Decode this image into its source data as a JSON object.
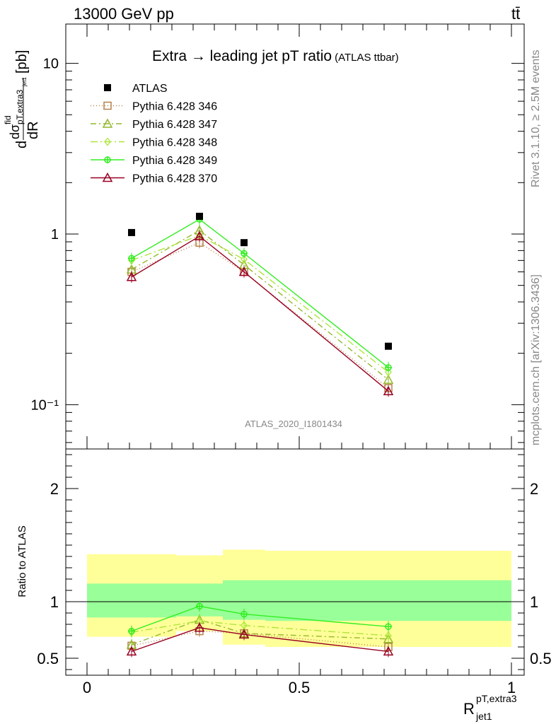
{
  "header": {
    "energy": "13000 GeV pp",
    "process": "tt̄"
  },
  "side_text": {
    "rivet": "Rivet 3.1.10, ≥ 2.5M events",
    "source": "mcplots.cern.ch [arXiv:1306.3436]"
  },
  "analysis_id": "ATLAS_2020_I1801434",
  "chart_data": [
    {
      "type": "line",
      "panel": "main",
      "title": "Extra → leading jet p_T ratio",
      "title_suffix": "(ATLAS ttbar)",
      "ylabel_parts": {
        "d1": "d",
        "sigma": "dσ",
        "sup": "fid",
        "sub": "pT,extra3",
        "subsub": "jet1",
        "dR": "dR",
        "unit": "[pb]"
      },
      "yscale": "log",
      "ylim": [
        0.055,
        17
      ],
      "xlim": [
        -0.05,
        1.03
      ],
      "ytick_labels": [
        "10",
        "1",
        "10⁻¹"
      ],
      "ytick_values": [
        10,
        1,
        0.1
      ],
      "legend_position": "top-left",
      "x": [
        0.105,
        0.265,
        0.37,
        0.71
      ],
      "data": {
        "name": "ATLAS",
        "color": "#000000",
        "values": [
          1.02,
          1.27,
          0.89,
          0.22
        ]
      },
      "series": [
        {
          "name": "Pythia 6.428 346",
          "color": "#b5814c",
          "dash": "1,3",
          "marker": "square",
          "values": [
            0.6,
            0.89,
            0.6,
            0.125
          ]
        },
        {
          "name": "Pythia 6.428 347",
          "color": "#94b82d",
          "dash": "8,4,2,4",
          "marker": "triangle",
          "values": [
            0.62,
            1.05,
            0.66,
            0.14
          ]
        },
        {
          "name": "Pythia 6.428 348",
          "color": "#aee63c",
          "dash": "10,4,2,4",
          "marker": "diamond",
          "values": [
            0.7,
            0.98,
            0.71,
            0.155
          ]
        },
        {
          "name": "Pythia 6.428 349",
          "color": "#33ee22",
          "dash": "",
          "marker": "cross",
          "values": [
            0.72,
            1.22,
            0.77,
            0.165
          ]
        },
        {
          "name": "Pythia 6.428 370",
          "color": "#990022",
          "dash": "",
          "marker": "triangle-open",
          "values": [
            0.56,
            0.97,
            0.6,
            0.12
          ]
        }
      ]
    },
    {
      "type": "line",
      "panel": "ratio",
      "ylabel": "Ratio to ATLAS",
      "xlabel_main": "R",
      "xlabel_sup": "pT,extra3",
      "xlabel_sub": "jet1",
      "ylim": [
        0.35,
        2.35
      ],
      "xlim": [
        -0.05,
        1.03
      ],
      "ytick_labels": [
        "0.5",
        "1",
        "2"
      ],
      "ytick_values": [
        0.5,
        1,
        2
      ],
      "xtick_labels": [
        "0",
        "0.5",
        "1"
      ],
      "xtick_values": [
        0,
        0.5,
        1
      ],
      "bands": [
        {
          "x0": 0.0,
          "x1": 0.21,
          "yellow": [
            0.69,
            1.42
          ],
          "green": [
            0.86,
            1.16
          ]
        },
        {
          "x0": 0.21,
          "x1": 0.32,
          "yellow": [
            0.74,
            1.41
          ],
          "green": [
            0.87,
            1.16
          ]
        },
        {
          "x0": 0.32,
          "x1": 0.42,
          "yellow": [
            0.62,
            1.46
          ],
          "green": [
            0.84,
            1.19
          ]
        },
        {
          "x0": 0.42,
          "x1": 1.0,
          "yellow": [
            0.6,
            1.45
          ],
          "green": [
            0.83,
            1.19
          ]
        }
      ],
      "x": [
        0.105,
        0.265,
        0.37,
        0.71
      ],
      "series": [
        {
          "name": "Pythia 6.428 346",
          "color": "#b5814c",
          "dash": "1,3",
          "marker": "square",
          "values": [
            0.61,
            0.74,
            0.72,
            0.6
          ]
        },
        {
          "name": "Pythia 6.428 347",
          "color": "#94b82d",
          "dash": "8,4,2,4",
          "marker": "triangle",
          "values": [
            0.62,
            0.84,
            0.72,
            0.67
          ]
        },
        {
          "name": "Pythia 6.428 348",
          "color": "#aee63c",
          "dash": "10,4,2,4",
          "marker": "diamond",
          "values": [
            0.73,
            0.83,
            0.79,
            0.7
          ]
        },
        {
          "name": "Pythia 6.428 349",
          "color": "#33ee22",
          "dash": "",
          "marker": "cross",
          "values": [
            0.74,
            0.96,
            0.89,
            0.78
          ]
        },
        {
          "name": "Pythia 6.428 370",
          "color": "#990022",
          "dash": "",
          "marker": "triangle-open",
          "values": [
            0.56,
            0.77,
            0.71,
            0.56
          ]
        }
      ]
    }
  ]
}
